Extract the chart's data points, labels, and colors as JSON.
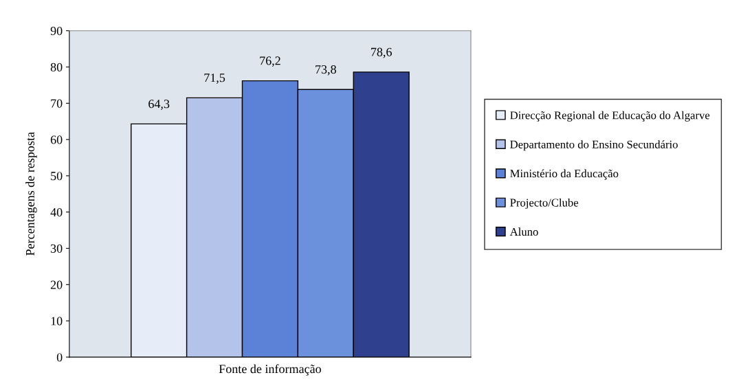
{
  "chart_data": {
    "type": "bar",
    "xlabel": "Fonte de informação",
    "ylabel": "Percentagens de resposta",
    "categories": [
      null
    ],
    "series": [
      {
        "name": "Direcção Regional de Educação do Algarve",
        "color": "#e6ecf8",
        "values": [
          64.3
        ],
        "value_labels": [
          "64,3"
        ]
      },
      {
        "name": "Departamento do Ensino Secundário",
        "color": "#b3c3ea",
        "values": [
          71.5
        ],
        "value_labels": [
          "71,5"
        ]
      },
      {
        "name": "Ministério da Educação",
        "color": "#5b82d6",
        "values": [
          76.2
        ],
        "value_labels": [
          "76,2"
        ]
      },
      {
        "name": "Projecto/Clube",
        "color": "#6b90dc",
        "values": [
          73.8
        ],
        "value_labels": [
          "73,8"
        ]
      },
      {
        "name": "Aluno",
        "color": "#2f418e",
        "values": [
          78.6
        ],
        "value_labels": [
          "78,6"
        ]
      }
    ],
    "ylim": [
      0,
      90
    ],
    "yticks": [
      0,
      10,
      20,
      30,
      40,
      50,
      60,
      70,
      80,
      90
    ],
    "grid": false,
    "legend": "right"
  }
}
